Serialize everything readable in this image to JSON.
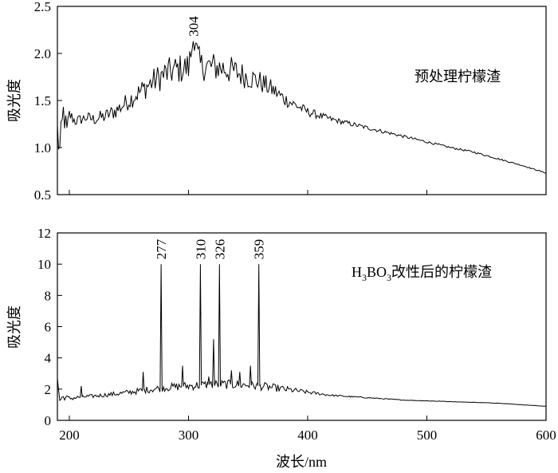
{
  "chart_data": [
    {
      "type": "line",
      "panel": "top",
      "ylabel": "吸光度",
      "annotation": "预处理柠檬渣",
      "xlim": [
        190,
        600
      ],
      "ylim": [
        0.5,
        2.5
      ],
      "yticks": [
        "0.5",
        "1.0",
        "1.5",
        "2.0",
        "2.5"
      ],
      "peak_labels": [
        {
          "x": 304,
          "y": 2.13,
          "label": "304"
        }
      ],
      "series": [
        {
          "x": [
            190,
            192,
            195,
            198,
            200,
            205,
            210,
            215,
            220,
            230,
            240,
            250,
            260,
            270,
            280,
            290,
            300,
            304,
            310,
            320,
            330,
            340,
            350,
            360,
            370,
            380,
            390,
            400,
            420,
            440,
            460,
            480,
            500,
            520,
            540,
            560,
            580,
            600
          ],
          "y": [
            1.18,
            0.95,
            1.38,
            1.15,
            1.35,
            1.28,
            1.3,
            1.32,
            1.3,
            1.33,
            1.4,
            1.5,
            1.6,
            1.7,
            1.78,
            1.83,
            1.85,
            2.13,
            1.87,
            1.86,
            1.84,
            1.8,
            1.75,
            1.7,
            1.62,
            1.52,
            1.45,
            1.38,
            1.3,
            1.24,
            1.18,
            1.12,
            1.06,
            1.0,
            0.95,
            0.88,
            0.81,
            0.73
          ],
          "noise": [
            0.2,
            0.2,
            0.15,
            0.15,
            0.08,
            0.06,
            0.06,
            0.06,
            0.07,
            0.08,
            0.09,
            0.1,
            0.12,
            0.14,
            0.16,
            0.16,
            0.17,
            0.16,
            0.16,
            0.16,
            0.16,
            0.15,
            0.13,
            0.12,
            0.1,
            0.08,
            0.06,
            0.05,
            0.03,
            0.025,
            0.02,
            0.015,
            0.012,
            0.01,
            0.01,
            0.008,
            0.006,
            0.005
          ]
        }
      ]
    },
    {
      "type": "line",
      "panel": "bottom",
      "ylabel": "吸光度",
      "xlabel": "波长/nm",
      "annotation": {
        "prefix": "H",
        "sub1": "3",
        "mid": "BO",
        "sub2": "3",
        "suffix": "改性后的柠檬渣"
      },
      "xlim": [
        190,
        600
      ],
      "ylim": [
        0,
        12
      ],
      "xticks": [
        "200",
        "300",
        "400",
        "500",
        "600"
      ],
      "yticks": [
        "0",
        "2",
        "4",
        "6",
        "8",
        "10",
        "12"
      ],
      "peak_labels": [
        {
          "x": 277,
          "y": 10,
          "label": "277"
        },
        {
          "x": 310,
          "y": 10,
          "label": "310"
        },
        {
          "x": 326,
          "y": 10,
          "label": "326"
        },
        {
          "x": 359,
          "y": 10,
          "label": "359"
        }
      ],
      "series": [
        {
          "x": [
            190,
            192,
            195,
            200,
            210,
            220,
            240,
            260,
            280,
            300,
            320,
            340,
            360,
            380,
            400,
            420,
            440,
            460,
            480,
            500,
            520,
            540,
            560,
            580,
            600
          ],
          "y": [
            2.6,
            1.3,
            1.5,
            1.4,
            1.5,
            1.55,
            1.7,
            1.9,
            2.1,
            2.2,
            2.3,
            2.3,
            2.2,
            2.0,
            1.8,
            1.6,
            1.5,
            1.4,
            1.3,
            1.25,
            1.2,
            1.15,
            1.1,
            1.0,
            0.9
          ],
          "noise": [
            0.3,
            0.25,
            0.2,
            0.15,
            0.12,
            0.12,
            0.15,
            0.2,
            0.25,
            0.28,
            0.3,
            0.3,
            0.28,
            0.22,
            0.12,
            0.06,
            0.04,
            0.03,
            0.02,
            0.02,
            0.015,
            0.01,
            0.01,
            0.01,
            0.008
          ],
          "spikes": [
            {
              "x": 210,
              "y": 2.2
            },
            {
              "x": 262,
              "y": 3.1
            },
            {
              "x": 277,
              "y": 10.0
            },
            {
              "x": 295,
              "y": 3.5
            },
            {
              "x": 310,
              "y": 10.0
            },
            {
              "x": 317,
              "y": 2.8
            },
            {
              "x": 321,
              "y": 5.2
            },
            {
              "x": 326,
              "y": 10.0
            },
            {
              "x": 336,
              "y": 3.2
            },
            {
              "x": 343,
              "y": 3.1
            },
            {
              "x": 352,
              "y": 3.5
            },
            {
              "x": 359,
              "y": 10.0
            }
          ]
        }
      ]
    }
  ]
}
